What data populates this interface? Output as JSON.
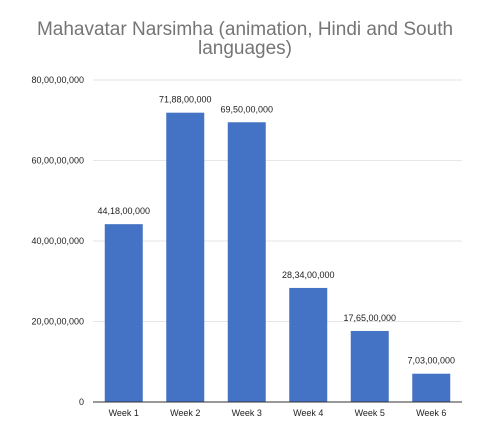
{
  "chart_data": {
    "type": "bar",
    "title": "Mahavatar Narsimha (animation, Hindi and South languages)",
    "categories": [
      "Week 1",
      "Week 2",
      "Week 3",
      "Week 4",
      "Week 5",
      "Week 6"
    ],
    "values": [
      441800000,
      718800000,
      695000000,
      283400000,
      176500000,
      70300000
    ],
    "value_labels": [
      "44,18,00,000",
      "71,88,00,000",
      "69,50,00,000",
      "28,34,00,000",
      "17,65,00,000",
      "7,03,00,000"
    ],
    "ylim": [
      0,
      800000000
    ],
    "yticks": [
      0,
      200000000,
      400000000,
      600000000,
      800000000
    ],
    "ytick_labels": [
      "0",
      "20,00,00,000",
      "40,00,00,000",
      "60,00,00,000",
      "80,00,00,000"
    ],
    "grid": true,
    "legend": "none",
    "colors": {
      "bar": "#4472c4",
      "grid": "#e6e6e6",
      "baseline": "#333333",
      "title": "#757575",
      "text": "#222222"
    }
  }
}
